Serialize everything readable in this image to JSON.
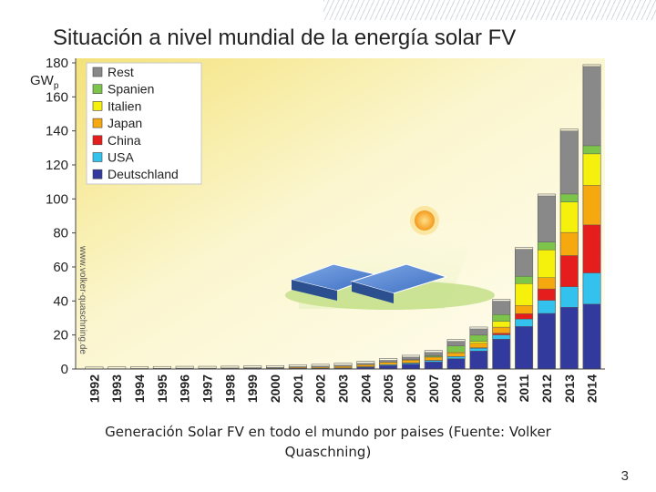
{
  "slide": {
    "title": "Situación a nivel mundial de la energía solar FV",
    "caption": "Generación Solar FV en todo el mundo por paises (Fuente: Volker Quaschning)",
    "page_number": "3"
  },
  "chart_data": {
    "type": "bar",
    "stacked": true,
    "title": "",
    "xlabel": "",
    "ylabel": "GWp",
    "ylim": [
      0,
      180
    ],
    "yticks": [
      0,
      20,
      40,
      60,
      80,
      100,
      120,
      140,
      160,
      180
    ],
    "grid": false,
    "legend_position": "top-left",
    "watermark": "www.volker-quaschning.de",
    "categories": [
      "1992",
      "1993",
      "1994",
      "1995",
      "1996",
      "1997",
      "1998",
      "1999",
      "2000",
      "2001",
      "2002",
      "2003",
      "2004",
      "2005",
      "2006",
      "2007",
      "2008",
      "2009",
      "2010",
      "2011",
      "2012",
      "2013",
      "2014"
    ],
    "series": [
      {
        "name": "Deutschland",
        "color": "#323a9e",
        "values": [
          0.0,
          0.0,
          0.0,
          0.0,
          0.0,
          0.0,
          0.1,
          0.1,
          0.1,
          0.2,
          0.3,
          0.4,
          1.0,
          2.0,
          2.9,
          4.2,
          6.1,
          10.6,
          17.6,
          25.0,
          32.7,
          36.3,
          38.2
        ]
      },
      {
        "name": "USA",
        "color": "#33c2ee",
        "values": [
          0.0,
          0.0,
          0.1,
          0.1,
          0.1,
          0.1,
          0.1,
          0.1,
          0.1,
          0.2,
          0.2,
          0.3,
          0.3,
          0.5,
          0.6,
          0.8,
          1.2,
          1.6,
          2.5,
          4.4,
          7.7,
          12.1,
          18.3
        ]
      },
      {
        "name": "China",
        "color": "#e51d1d",
        "values": [
          0.0,
          0.0,
          0.0,
          0.0,
          0.0,
          0.0,
          0.0,
          0.0,
          0.0,
          0.0,
          0.0,
          0.0,
          0.1,
          0.1,
          0.1,
          0.1,
          0.1,
          0.3,
          0.9,
          3.1,
          6.7,
          18.3,
          28.2
        ]
      },
      {
        "name": "Japan",
        "color": "#f6a80f",
        "values": [
          0.0,
          0.0,
          0.0,
          0.0,
          0.1,
          0.1,
          0.1,
          0.2,
          0.3,
          0.5,
          0.6,
          0.9,
          1.1,
          1.4,
          1.7,
          1.9,
          2.1,
          2.6,
          3.6,
          4.9,
          6.6,
          13.6,
          23.3
        ]
      },
      {
        "name": "Italien",
        "color": "#f5f10d",
        "values": [
          0.0,
          0.0,
          0.0,
          0.0,
          0.0,
          0.0,
          0.0,
          0.0,
          0.0,
          0.0,
          0.0,
          0.0,
          0.0,
          0.0,
          0.1,
          0.1,
          0.5,
          1.2,
          3.5,
          12.8,
          16.4,
          17.9,
          18.5
        ]
      },
      {
        "name": "Spanien",
        "color": "#7cc44a",
        "values": [
          0.0,
          0.0,
          0.0,
          0.0,
          0.0,
          0.0,
          0.0,
          0.0,
          0.0,
          0.0,
          0.0,
          0.0,
          0.0,
          0.0,
          0.1,
          0.7,
          3.5,
          3.6,
          3.9,
          4.3,
          4.5,
          4.7,
          4.8
        ]
      },
      {
        "name": "Rest",
        "color": "#898989",
        "values": [
          0.1,
          0.2,
          0.2,
          0.3,
          0.3,
          0.3,
          0.3,
          0.4,
          0.4,
          0.5,
          0.6,
          0.7,
          0.9,
          1.1,
          1.5,
          2.0,
          2.8,
          3.7,
          7.9,
          15.9,
          27.2,
          37.1,
          46.6
        ]
      }
    ]
  }
}
